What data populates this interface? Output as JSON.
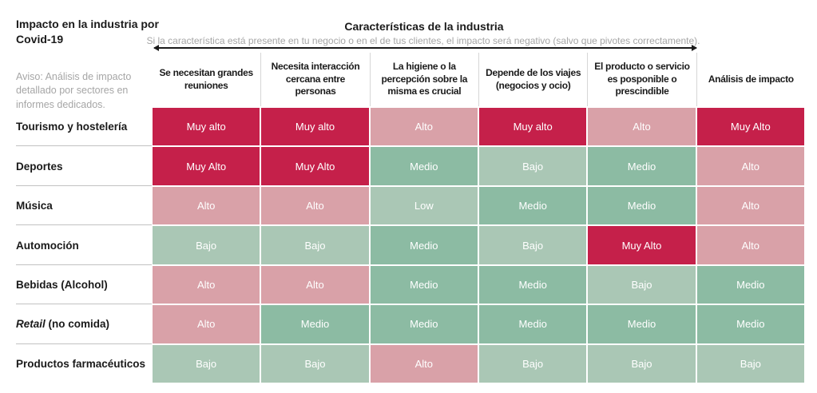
{
  "header": {
    "title": "Impacto en la industria por\nCovid-19",
    "aviso": "Aviso: Análisis de impacto detallado por sectores en informes dedicados.",
    "char_title": "Características de la industria",
    "char_subtitle": "Si la característica está presente en tu negocio o en el de tus clientes, el impacto será negativo (salvo que pivotes correctamente)."
  },
  "colors": {
    "muy_alto": "#C5204A",
    "alto": "#D9A1A8",
    "medio": "#8CBBA3",
    "bajo": "#AAC7B5",
    "cell_text": "#FFFFFF",
    "gray_text": "#A6A6A6"
  },
  "chart_data": {
    "type": "heatmap",
    "title": "Impacto en la industria por Covid-19",
    "columns": [
      "Se necesitan grandes\nreuniones",
      "Necesita interacción\ncercana entre\npersonas",
      "La higiene o la\npercepción sobre la\nmisma es crucial",
      "Depende de los viajes\n(negocios y ocio)",
      "El producto o servicio\nes posponible o\nprescindible",
      "Análisis de impacto"
    ],
    "levels": {
      "muy_alto": "#C5204A",
      "alto": "#D9A1A8",
      "medio": "#8CBBA3",
      "bajo": "#AAC7B5"
    },
    "rows": [
      {
        "label": "Tourismo y hostelería",
        "label_italic": "",
        "label_rest": "Tourismo y hostelería",
        "cells": [
          {
            "text": "Muy alto",
            "level": "muy_alto"
          },
          {
            "text": "Muy alto",
            "level": "muy_alto"
          },
          {
            "text": "Alto",
            "level": "alto"
          },
          {
            "text": "Muy alto",
            "level": "muy_alto"
          },
          {
            "text": "Alto",
            "level": "alto"
          },
          {
            "text": "Muy Alto",
            "level": "muy_alto"
          }
        ]
      },
      {
        "label": "Deportes",
        "label_italic": "",
        "label_rest": "Deportes",
        "cells": [
          {
            "text": "Muy Alto",
            "level": "muy_alto"
          },
          {
            "text": "Muy Alto",
            "level": "muy_alto"
          },
          {
            "text": "Medio",
            "level": "medio"
          },
          {
            "text": "Bajo",
            "level": "bajo"
          },
          {
            "text": "Medio",
            "level": "medio"
          },
          {
            "text": "Alto",
            "level": "alto"
          }
        ]
      },
      {
        "label": "Música",
        "label_italic": "",
        "label_rest": "Música",
        "cells": [
          {
            "text": "Alto",
            "level": "alto"
          },
          {
            "text": "Alto",
            "level": "alto"
          },
          {
            "text": "Low",
            "level": "bajo"
          },
          {
            "text": "Medio",
            "level": "medio"
          },
          {
            "text": "Medio",
            "level": "medio"
          },
          {
            "text": "Alto",
            "level": "alto"
          }
        ]
      },
      {
        "label": "Automoción",
        "label_italic": "",
        "label_rest": "Automoción",
        "cells": [
          {
            "text": "Bajo",
            "level": "bajo"
          },
          {
            "text": "Bajo",
            "level": "bajo"
          },
          {
            "text": "Medio",
            "level": "medio"
          },
          {
            "text": "Bajo",
            "level": "bajo"
          },
          {
            "text": "Muy Alto",
            "level": "muy_alto"
          },
          {
            "text": "Alto",
            "level": "alto"
          }
        ]
      },
      {
        "label": "Bebidas (Alcohol)",
        "label_italic": "",
        "label_rest": "Bebidas (Alcohol)",
        "cells": [
          {
            "text": "Alto",
            "level": "alto"
          },
          {
            "text": "Alto",
            "level": "alto"
          },
          {
            "text": "Medio",
            "level": "medio"
          },
          {
            "text": "Medio",
            "level": "medio"
          },
          {
            "text": "Bajo",
            "level": "bajo"
          },
          {
            "text": "Medio",
            "level": "medio"
          }
        ]
      },
      {
        "label": "Retail (no comida)",
        "label_italic": "Retail",
        "label_rest": " (no comida)",
        "cells": [
          {
            "text": "Alto",
            "level": "alto"
          },
          {
            "text": "Medio",
            "level": "medio"
          },
          {
            "text": "Medio",
            "level": "medio"
          },
          {
            "text": "Medio",
            "level": "medio"
          },
          {
            "text": "Medio",
            "level": "medio"
          },
          {
            "text": "Medio",
            "level": "medio"
          }
        ]
      },
      {
        "label": "Productos farmacéuticos",
        "label_italic": "",
        "label_rest": "Productos farmacéuticos",
        "cells": [
          {
            "text": "Bajo",
            "level": "bajo"
          },
          {
            "text": "Bajo",
            "level": "bajo"
          },
          {
            "text": "Alto",
            "level": "alto"
          },
          {
            "text": "Bajo",
            "level": "bajo"
          },
          {
            "text": "Bajo",
            "level": "bajo"
          },
          {
            "text": "Bajo",
            "level": "bajo"
          }
        ]
      }
    ]
  }
}
